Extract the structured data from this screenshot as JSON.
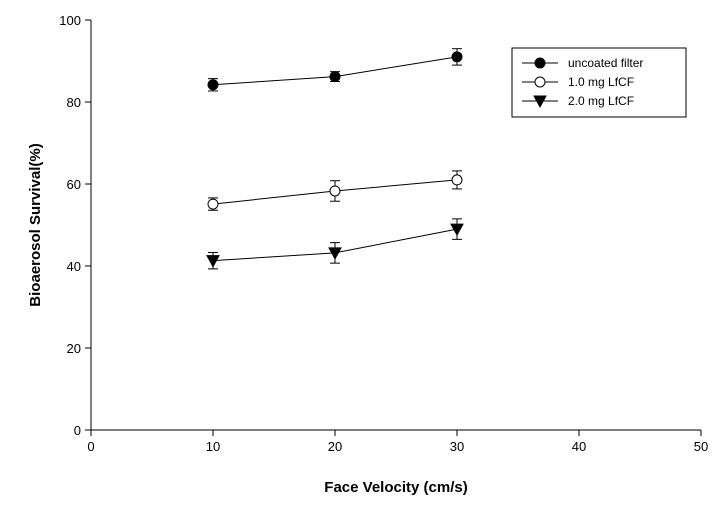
{
  "chart_data": {
    "type": "line",
    "title": "",
    "xlabel": "Face Velocity (cm/s)",
    "ylabel": "Bioaerosol Survival(%)",
    "xlim": [
      0,
      50
    ],
    "ylim": [
      0,
      100
    ],
    "xticks": [
      "0",
      "10",
      "20",
      "30",
      "40",
      "50"
    ],
    "yticks": [
      "0",
      "20",
      "40",
      "60",
      "80",
      "100"
    ],
    "grid": false,
    "legend_position": "top-right",
    "x": [
      10,
      20,
      30
    ],
    "series": [
      {
        "name": "uncoated filter",
        "marker": "filled-circle",
        "values": [
          84.2,
          86.2,
          91.0
        ],
        "errors": [
          1.5,
          1.2,
          2.0
        ]
      },
      {
        "name": "1.0 mg LfCF",
        "marker": "open-circle",
        "values": [
          55.1,
          58.3,
          61.0
        ],
        "errors": [
          1.5,
          2.5,
          2.2
        ]
      },
      {
        "name": "2.0 mg LfCF",
        "marker": "filled-triangle-down",
        "values": [
          41.3,
          43.2,
          49.0
        ],
        "errors": [
          2.0,
          2.5,
          2.5
        ]
      }
    ],
    "colors": {
      "line": "#000000",
      "marker_fill_filled": "#000000",
      "marker_fill_open": "#ffffff"
    }
  }
}
